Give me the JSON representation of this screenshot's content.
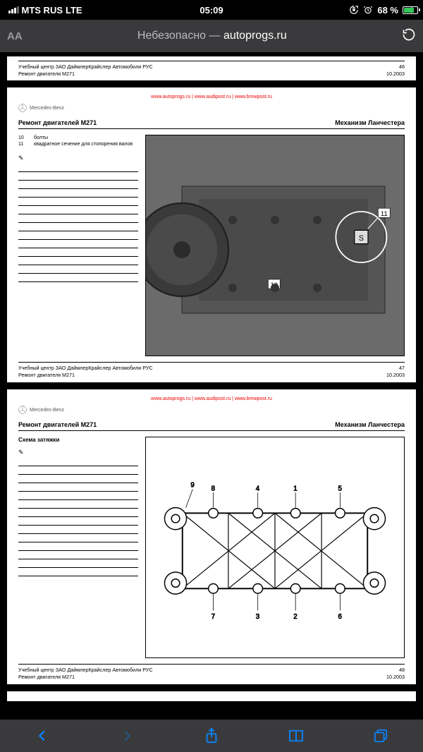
{
  "status": {
    "carrier": "MTS RUS",
    "network": "LTE",
    "time": "05:09",
    "battery_pct": "68 %",
    "battery_fill_pct": 68
  },
  "nav": {
    "aa": "AA",
    "insecure_prefix": "Небезопасно — ",
    "domain": "autoprogs.ru"
  },
  "watermark": "www.autoprogs.ru | www.audipost.ru | www.bmwpost.ru",
  "brand": "Mercedes-Benz",
  "footer": {
    "org": "Учебный центр ЗАО ДаймлерКрайслер Автомобили РУС",
    "doc": "Ремонт двигателя М271",
    "date": "10.2003"
  },
  "page46": {
    "num": "46"
  },
  "page47": {
    "num": "47",
    "title_left": "Ремонт двигателей М271",
    "title_right": "Механизм Ланчестера",
    "items": [
      {
        "n": "10",
        "t": "болты"
      },
      {
        "n": "11",
        "t": "квадратное сечение для стопорения валов"
      }
    ],
    "note_line_count": 14,
    "callouts": [
      "10",
      "11"
    ]
  },
  "page48": {
    "num": "48",
    "title_left": "Ремонт двигателей М271",
    "title_right": "Механизм Ланчестера",
    "subtitle": "Схема затяжки",
    "note_line_count": 14,
    "diagram_labels": [
      "1",
      "2",
      "3",
      "4",
      "5",
      "6",
      "7",
      "8",
      "9"
    ]
  },
  "colors": {
    "page_bg": "#ffffff",
    "viewport_bg": "#000000",
    "chrome_bg": "#3a3a3c",
    "watermark": "#ee0000",
    "ios_blue": "#0a84ff",
    "battery_green": "#34c759"
  }
}
